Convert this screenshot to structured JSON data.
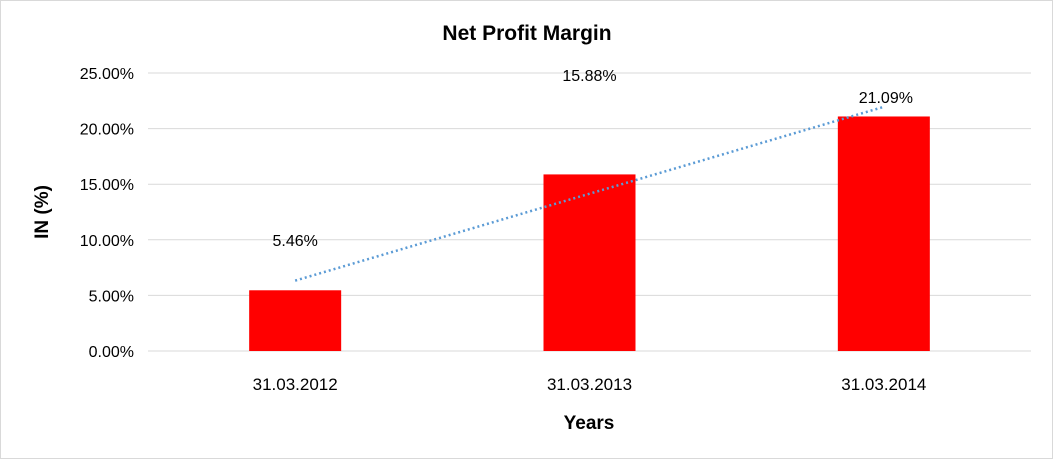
{
  "chart_data": {
    "type": "bar",
    "title": "Net Profit Margin",
    "xlabel": "Years",
    "ylabel": "IN (%)",
    "categories": [
      "31.03.2012",
      "31.03.2013",
      "31.03.2014"
    ],
    "values": [
      5.46,
      15.88,
      21.09
    ],
    "data_labels": [
      "5.46%",
      "15.88%",
      "21.09%"
    ],
    "ylim": [
      0,
      25
    ],
    "yticks": [
      0,
      5,
      10,
      15,
      20,
      25
    ],
    "ytick_labels": [
      "0.00%",
      "5.00%",
      "10.00%",
      "15.00%",
      "20.00%",
      "25.00%"
    ],
    "grid": true,
    "legend": "none",
    "bar_color": "#ff0000",
    "trendline": {
      "type": "linear",
      "style": "dotted",
      "color": "#5b9bd5"
    }
  }
}
